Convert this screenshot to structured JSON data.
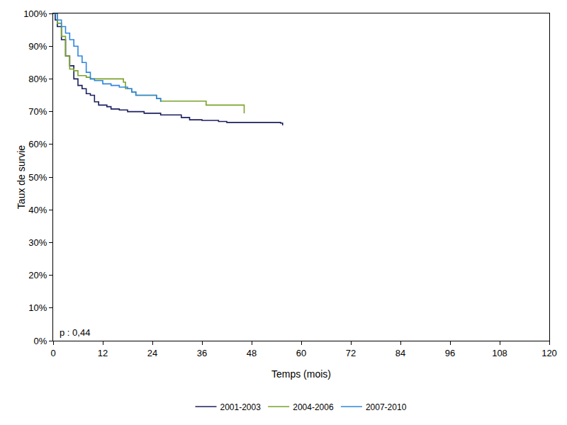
{
  "chart_data": {
    "type": "line",
    "line_style": "step",
    "x_label": "Temps (mois)",
    "y_label": "Taux de survie",
    "xlim": [
      0,
      120
    ],
    "xticks": [
      0,
      12,
      24,
      36,
      48,
      60,
      72,
      84,
      96,
      108,
      120
    ],
    "ylim": [
      0,
      100
    ],
    "yticks": [
      {
        "value": 0,
        "label": "0%"
      },
      {
        "value": 10,
        "label": "10%"
      },
      {
        "value": 20,
        "label": "20%"
      },
      {
        "value": 30,
        "label": "30%"
      },
      {
        "value": 40,
        "label": "40%"
      },
      {
        "value": 50,
        "label": "50%"
      },
      {
        "value": 60,
        "label": "60%"
      },
      {
        "value": 70,
        "label": "70%"
      },
      {
        "value": 80,
        "label": "80%"
      },
      {
        "value": 90,
        "label": "90%"
      },
      {
        "value": 100,
        "label": "100%"
      }
    ],
    "grid": false,
    "legend": "bottom",
    "annotations": [
      {
        "text": "p : 0,44"
      }
    ],
    "series": [
      {
        "name": "2001-2003",
        "color": "#1b1f5e",
        "x": [
          0,
          0.5,
          1,
          2,
          3,
          4,
          5,
          6,
          7,
          8,
          9,
          10,
          11,
          12,
          13,
          14,
          16,
          18,
          22,
          26,
          30,
          31,
          33,
          36,
          40,
          42,
          55,
          55.5
        ],
        "values": [
          100,
          98,
          96,
          92,
          87,
          84,
          80,
          78,
          77,
          75.5,
          75,
          73,
          72,
          72,
          71.5,
          70.8,
          70.5,
          70,
          69.5,
          69,
          69,
          68.2,
          67.5,
          67.3,
          67,
          66.7,
          66.5,
          65.8
        ]
      },
      {
        "name": "2004-2006",
        "color": "#7aa32a",
        "x": [
          0,
          1,
          2,
          3,
          4,
          5,
          6,
          8,
          9,
          14,
          17,
          17.5,
          19,
          20,
          25,
          26,
          36,
          37,
          46,
          46.2
        ],
        "values": [
          100,
          97,
          93,
          87,
          83,
          82.5,
          81,
          80.5,
          80,
          80,
          79,
          77,
          76,
          75,
          74,
          73.2,
          73.2,
          72,
          72,
          69.5
        ]
      },
      {
        "name": "2007-2010",
        "color": "#2e86de",
        "x": [
          0,
          1,
          2,
          3,
          4,
          5,
          6,
          7,
          8,
          9,
          10,
          12,
          14,
          16,
          18,
          19,
          20,
          25,
          26
        ],
        "values": [
          100,
          98,
          96,
          94,
          92,
          90,
          87,
          85,
          82,
          80,
          79.5,
          78.5,
          78,
          77.5,
          77,
          76,
          75,
          74,
          73
        ]
      }
    ]
  }
}
